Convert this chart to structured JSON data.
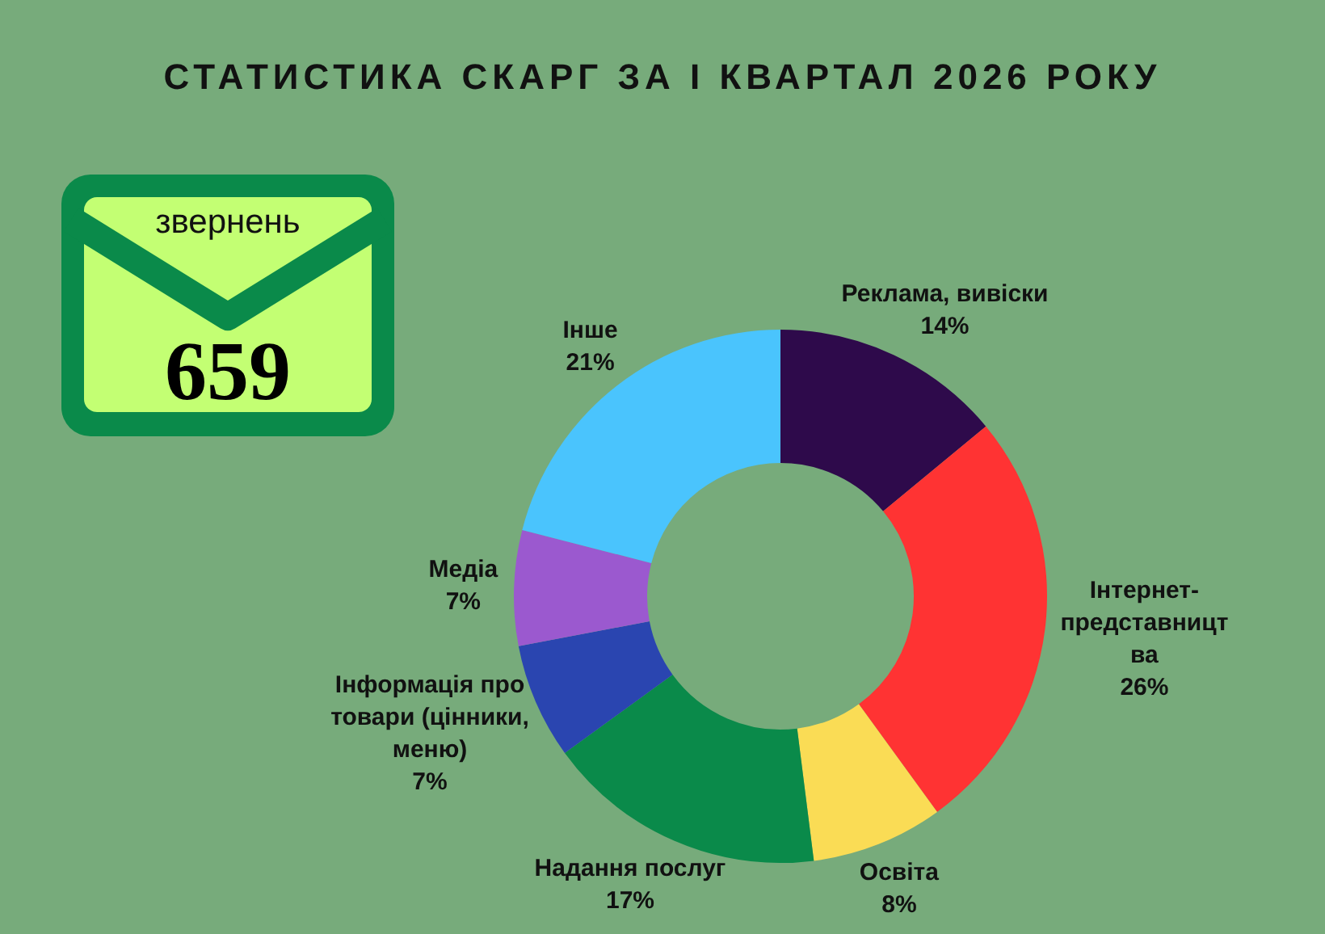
{
  "chart_data": [
    {
      "type": "donut",
      "title": "СТАТИСТИКА СКАРГ ЗА І КВАРТАЛ 2026 РОКУ",
      "categories": [
        "Реклама, вивіски",
        "Інтернет-представництва",
        "Освіта",
        "Надання послуг",
        "Інформація про товари (цінники, меню)",
        "Медіа",
        "Інше"
      ],
      "values": [
        14,
        26,
        8,
        17,
        7,
        7,
        21
      ],
      "colors": [
        "#2e0a4b",
        "#ff3333",
        "#fadc55",
        "#0a8a4a",
        "#2a45b0",
        "#9b59cf",
        "#4ac4fd"
      ],
      "value_labels": [
        "14%",
        "26%",
        "8%",
        "17%",
        "7%",
        "7%",
        "21%"
      ]
    },
    {
      "type": "other",
      "annotations": [
        "звернень",
        "659"
      ]
    }
  ]
}
